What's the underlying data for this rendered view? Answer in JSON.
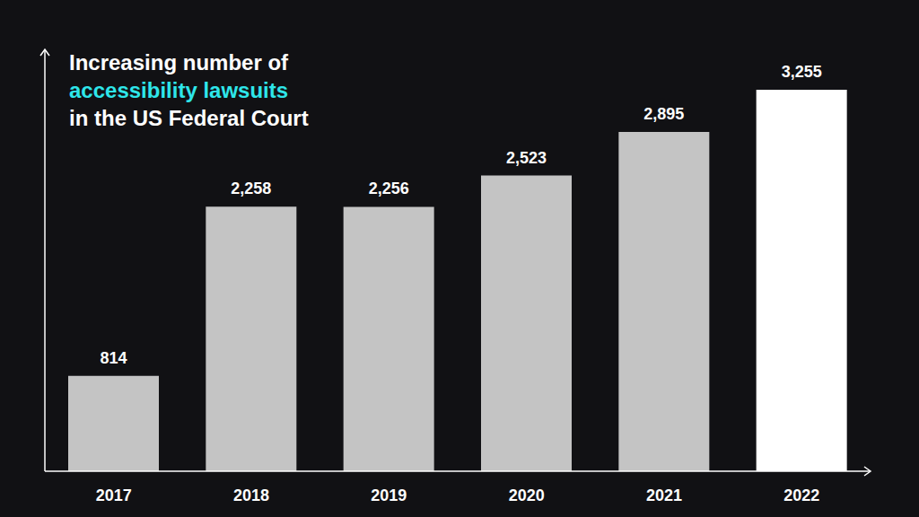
{
  "chart_data": {
    "type": "bar",
    "title": [
      "Increasing number of",
      "accessibility lawsuits",
      "in the US Federal Court"
    ],
    "categories": [
      "2017",
      "2018",
      "2019",
      "2020",
      "2021",
      "2022"
    ],
    "values": [
      814,
      2258,
      2256,
      2523,
      2895,
      3255
    ],
    "value_labels": [
      "814",
      "2,258",
      "2,256",
      "2,523",
      "2,895",
      "3,255"
    ],
    "colors": [
      "#c4c4c4",
      "#c4c4c4",
      "#c4c4c4",
      "#c4c4c4",
      "#c4c4c4",
      "#ffffff"
    ],
    "ylim": [
      0,
      3600
    ],
    "yticks": [],
    "grid": false,
    "data_labels": true,
    "tick_labels": "x"
  }
}
